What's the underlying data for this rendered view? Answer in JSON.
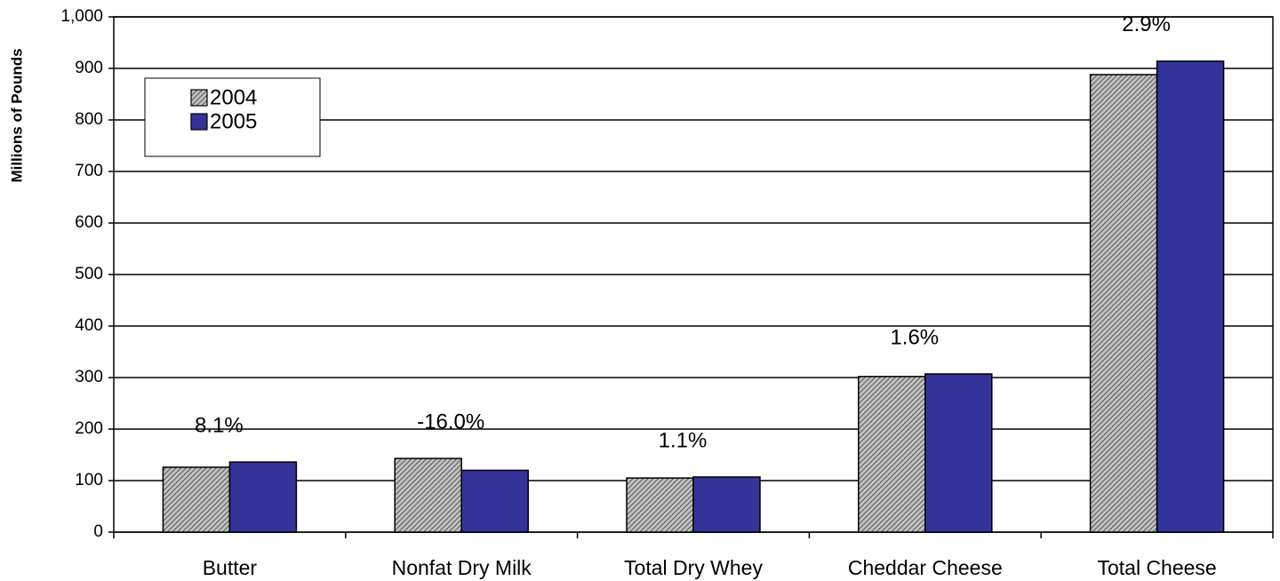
{
  "chart_data": {
    "type": "bar",
    "y_label": "Millions of Pounds",
    "categories": [
      "Butter",
      "Nonfat Dry Milk",
      "Total Dry Whey",
      "Cheddar Cheese",
      "Total Cheese"
    ],
    "series": [
      {
        "name": "2004",
        "color": "#c0c0c0",
        "hatch": true,
        "values": [
          126,
          143,
          105,
          302,
          888
        ]
      },
      {
        "name": "2005",
        "color": "#333399",
        "values": [
          136,
          120,
          107,
          307,
          914
        ]
      }
    ],
    "annotations": [
      "8.1%",
      "-16.0%",
      "1.1%",
      "1.6%",
      "2.9%"
    ],
    "ylim": [
      0,
      1000
    ],
    "yticks": [
      0,
      100,
      200,
      300,
      400,
      500,
      600,
      700,
      800,
      900,
      {
        "value": 1000,
        "label": "1,000"
      }
    ],
    "grid": true,
    "legend": "upper left"
  }
}
